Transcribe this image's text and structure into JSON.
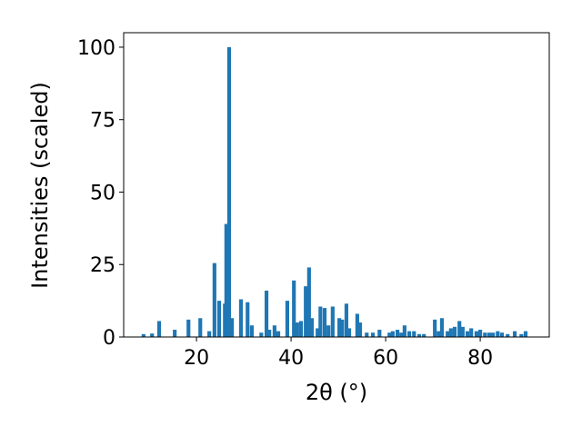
{
  "chart_data": {
    "type": "bar",
    "xlabel": "2θ (°)",
    "ylabel": "Intensities (scaled)",
    "color": "#1f77b4",
    "x": [
      8.8,
      10.6,
      12.1,
      15.4,
      18.3,
      20.8,
      22.7,
      23.8,
      24.8,
      26.0,
      26.3,
      26.9,
      27.5,
      29.4,
      30.8,
      31.7,
      33.7,
      34.8,
      35.4,
      36.5,
      37.3,
      39.2,
      40.6,
      41.3,
      42.1,
      43.1,
      43.8,
      44.4,
      45.6,
      46.2,
      47.1,
      47.9,
      48.8,
      50.2,
      50.8,
      51.7,
      52.3,
      54.0,
      54.6,
      56.0,
      57.3,
      58.7,
      60.8,
      61.5,
      62.5,
      63.3,
      64.0,
      65.0,
      66.0,
      67.1,
      68.1,
      70.4,
      71.2,
      71.9,
      73.1,
      73.8,
      74.6,
      75.6,
      76.3,
      77.3,
      78.1,
      79.2,
      80.0,
      81.0,
      81.9,
      82.7,
      83.7,
      84.6,
      85.8,
      87.3,
      88.7,
      89.6
    ],
    "values": [
      1,
      1.2,
      5.5,
      2.5,
      6,
      6.5,
      2,
      25.5,
      12.5,
      11.5,
      39,
      100,
      6.5,
      13,
      12,
      4,
      1.5,
      16,
      2.5,
      4,
      2,
      12.5,
      19.5,
      5,
      5.5,
      17.5,
      24,
      6.5,
      3,
      10.5,
      10,
      4,
      10.5,
      6.5,
      6,
      11.5,
      3,
      8,
      5,
      1.5,
      1.5,
      2.5,
      1.5,
      2,
      2.5,
      1.5,
      4,
      2,
      2,
      1,
      1,
      6,
      2,
      6.5,
      2,
      3,
      3.5,
      5.5,
      3.5,
      2,
      3,
      2,
      2.5,
      1.5,
      1.5,
      1.5,
      2,
      1.5,
      1,
      2,
      1,
      2
    ],
    "xlim": [
      4.6,
      94.6
    ],
    "ylim": [
      0,
      105
    ],
    "xticks": [
      20,
      40,
      60,
      80
    ],
    "yticks": [
      0,
      25,
      50,
      75,
      100
    ]
  }
}
